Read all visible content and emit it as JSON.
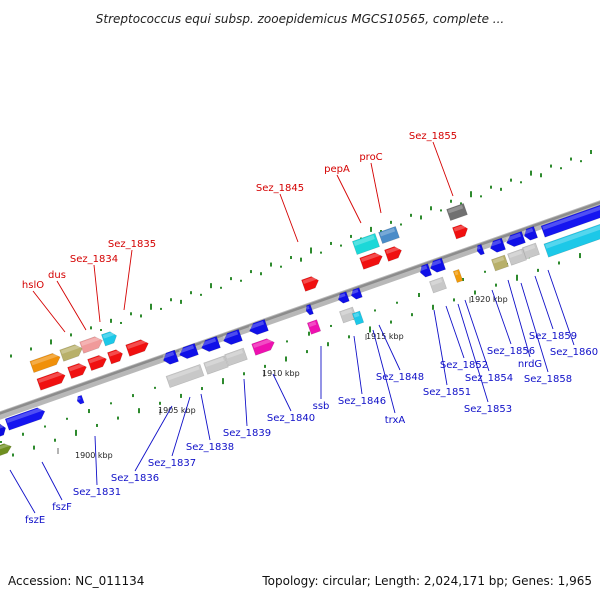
{
  "title": "Streptococcus equi subsp. zooepidemicus MGCS10565, complete ...",
  "accession": "Accession: NC_011134",
  "topology": "Topology: circular; Length: 2,024,171 bp; Genes: 1,965",
  "colors": {
    "backbone": "#a9a9a9",
    "forward_label": "#d40000",
    "reverse_label": "#1010c8",
    "gc_dash": "#2d8a2d"
  },
  "scale_labels": [
    "1900 kbp",
    "1905 kbp",
    "1910 kbp",
    "1915 kbp",
    "1920 kbp"
  ],
  "forward_gene_labels": [
    "hslO",
    "dus",
    "Sez_1834",
    "Sez_1835",
    "Sez_1845",
    "pepA",
    "proC",
    "Sez_1855"
  ],
  "reverse_gene_labels": [
    "fszE",
    "fszF",
    "Sez_1831",
    "Sez_1836",
    "Sez_1837",
    "Sez_1838",
    "Sez_1839",
    "Sez_1840",
    "ssb",
    "Sez_1846",
    "trxA",
    "Sez_1848",
    "Sez_1851",
    "Sez_1852",
    "Sez_1853",
    "Sez_1854",
    "Sez_1856",
    "nrdG",
    "Sez_1858",
    "Sez_1859",
    "Sez_1860"
  ]
}
